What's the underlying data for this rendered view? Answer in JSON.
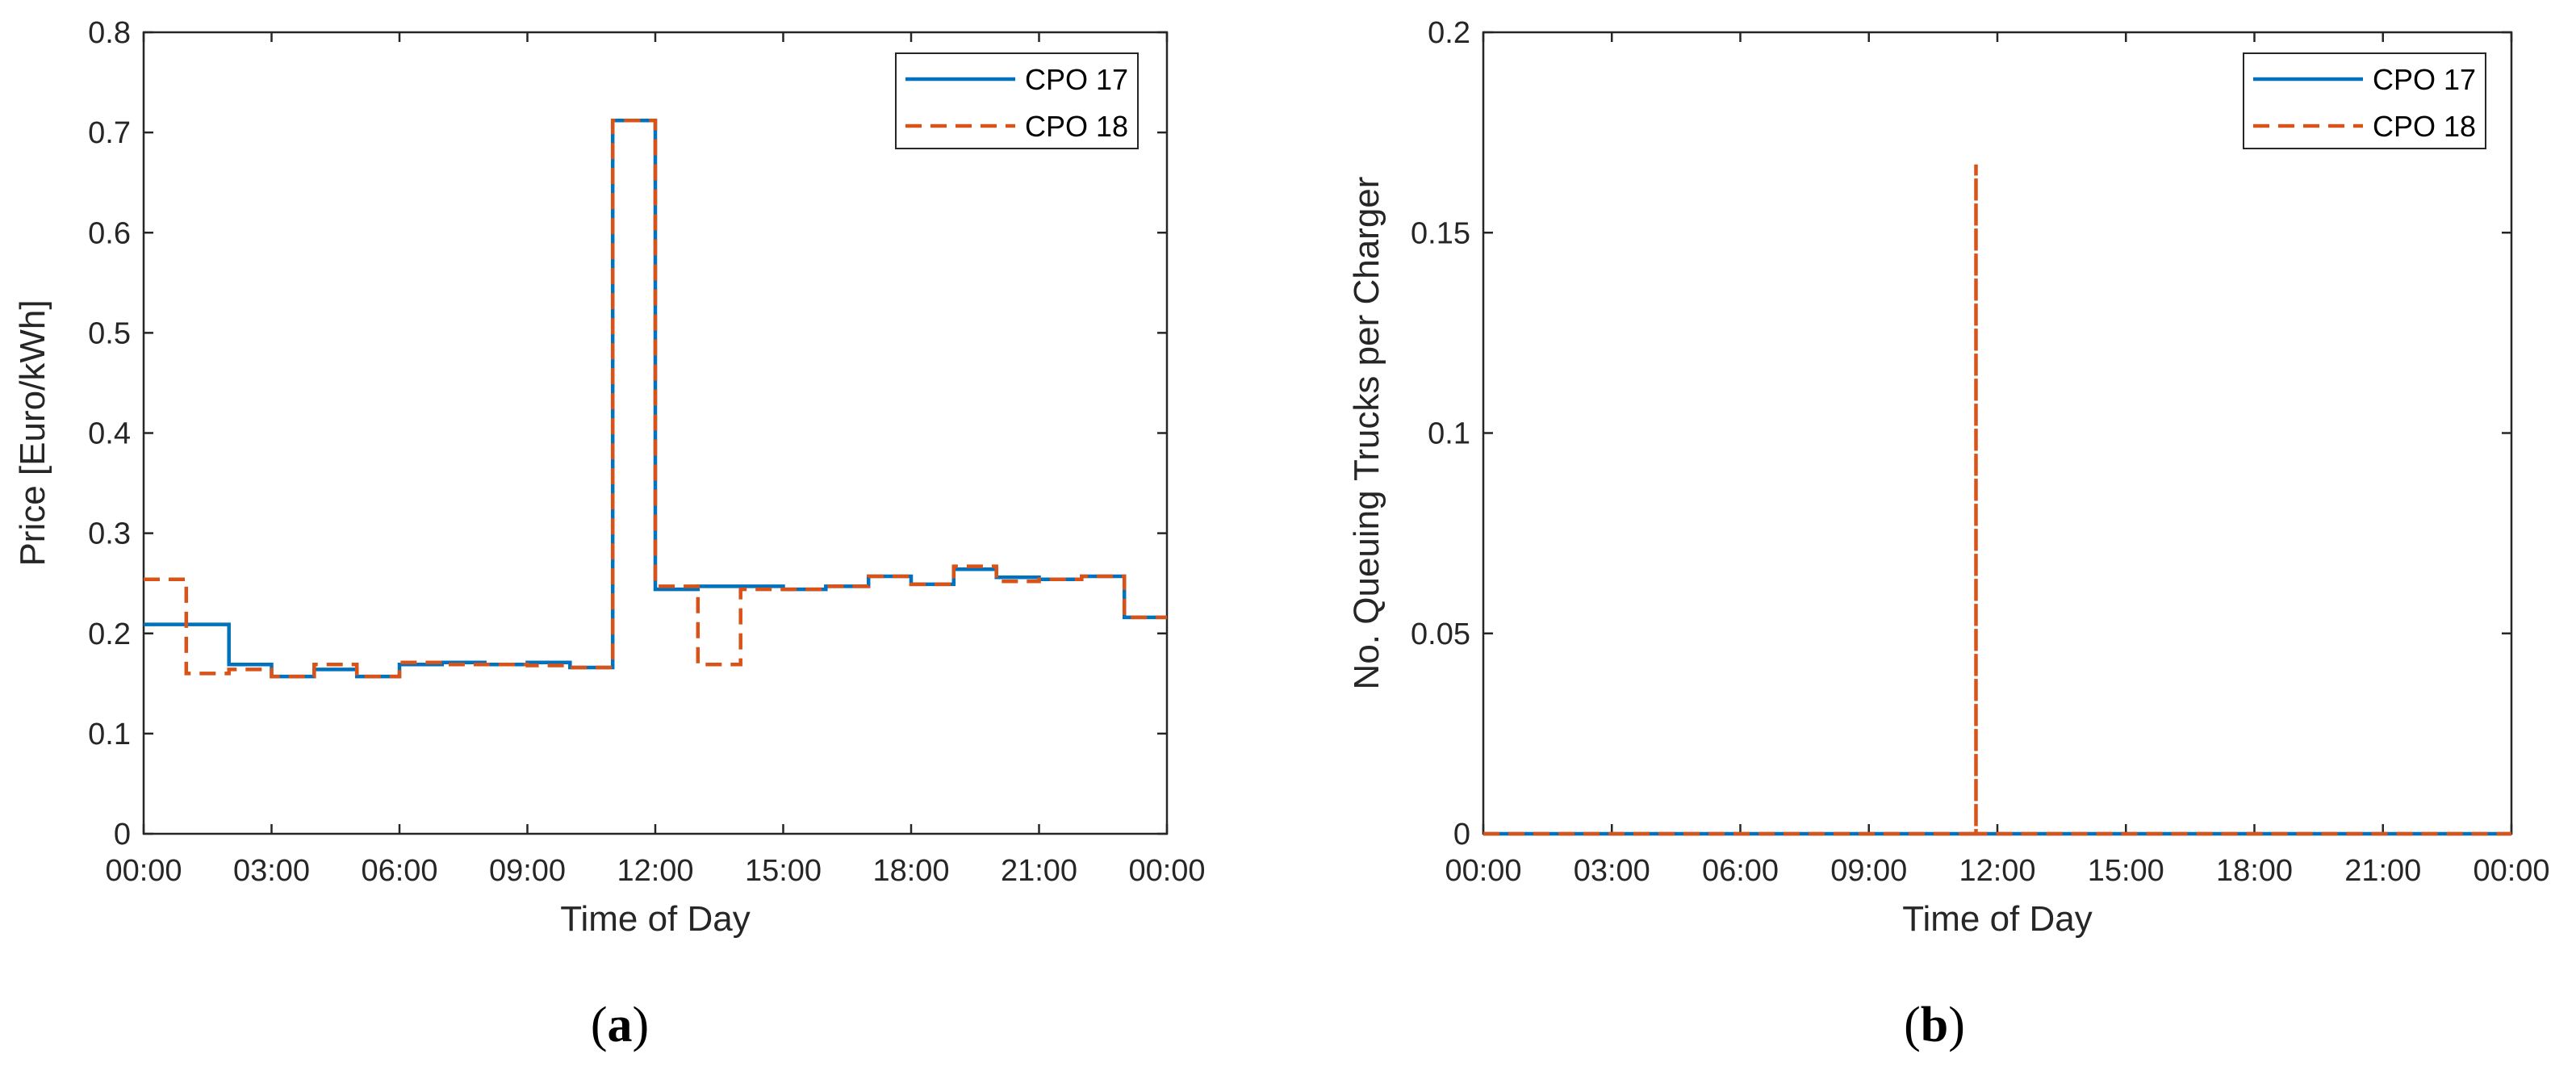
{
  "colors": {
    "cpo17": "#0072BD",
    "cpo18": "#D95319",
    "axis": "#262626",
    "frame": "#000000"
  },
  "panels": [
    {
      "caption_open": "(",
      "caption_letter": "a",
      "caption_close": ")"
    },
    {
      "caption_open": "(",
      "caption_letter": "b",
      "caption_close": ")"
    }
  ],
  "chart_data": [
    {
      "type": "line",
      "step": "post",
      "xlabel": "Time of Day",
      "ylabel": "Price [Euro/kWh]",
      "ylim": [
        0,
        0.8
      ],
      "yticks": [
        0,
        0.1,
        0.2,
        0.3,
        0.4,
        0.5,
        0.6,
        0.7,
        0.8
      ],
      "ytick_labels": [
        "0",
        "0.1",
        "0.2",
        "0.3",
        "0.4",
        "0.5",
        "0.6",
        "0.7",
        "0.8"
      ],
      "xlim_hours": [
        0,
        24
      ],
      "xticks_hours": [
        0,
        3,
        6,
        9,
        12,
        15,
        18,
        21,
        24
      ],
      "xtick_labels": [
        "00:00",
        "03:00",
        "06:00",
        "09:00",
        "12:00",
        "15:00",
        "18:00",
        "21:00",
        "00:00"
      ],
      "legend": "top-right",
      "grid": false,
      "x_hours": [
        0,
        1,
        2,
        3,
        4,
        5,
        6,
        7,
        8,
        9,
        10,
        11,
        12,
        13,
        14,
        15,
        16,
        17,
        18,
        19,
        20,
        21,
        22,
        23,
        24
      ],
      "series": [
        {
          "name": "CPO 17",
          "style": "solid",
          "values": [
            0.209,
            0.209,
            0.169,
            0.157,
            0.164,
            0.157,
            0.169,
            0.171,
            0.169,
            0.171,
            0.166,
            0.712,
            0.244,
            0.247,
            0.247,
            0.244,
            0.247,
            0.257,
            0.249,
            0.264,
            0.256,
            0.254,
            0.257,
            0.216,
            0.216
          ]
        },
        {
          "name": "CPO 18",
          "style": "dashed",
          "values": [
            0.254,
            0.16,
            0.164,
            0.157,
            0.169,
            0.157,
            0.171,
            0.169,
            0.169,
            0.168,
            0.166,
            0.712,
            0.247,
            0.169,
            0.244,
            0.244,
            0.247,
            0.257,
            0.249,
            0.267,
            0.252,
            0.254,
            0.257,
            0.216,
            0.216
          ]
        }
      ]
    },
    {
      "type": "line",
      "xlabel": "Time of Day",
      "ylabel": "No. Queuing Trucks per Charger",
      "ylim": [
        0,
        0.2
      ],
      "yticks": [
        0,
        0.05,
        0.1,
        0.15,
        0.2
      ],
      "ytick_labels": [
        "0",
        "0.05",
        "0.1",
        "0.15",
        "0.2"
      ],
      "xlim_hours": [
        0,
        24
      ],
      "xticks_hours": [
        0,
        3,
        6,
        9,
        12,
        15,
        18,
        21,
        24
      ],
      "xtick_labels": [
        "00:00",
        "03:00",
        "06:00",
        "09:00",
        "12:00",
        "15:00",
        "18:00",
        "21:00",
        "00:00"
      ],
      "legend": "top-right",
      "grid": false,
      "series": [
        {
          "name": "CPO 17",
          "style": "solid",
          "x_hours": [
            0,
            24
          ],
          "values": [
            0,
            0
          ]
        },
        {
          "name": "CPO 18",
          "style": "dashed",
          "x_hours": [
            0,
            11.5,
            11.5,
            11.5,
            11.5,
            24
          ],
          "values": [
            0,
            0,
            0.167,
            0.167,
            0,
            0
          ]
        }
      ]
    }
  ]
}
